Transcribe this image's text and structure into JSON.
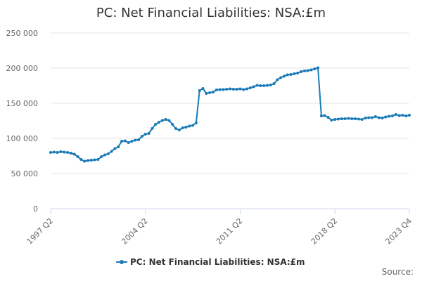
{
  "chart_data": {
    "type": "line",
    "title": "PC: Net Financial Liabilities: NSA:£m",
    "xlabel": "",
    "ylabel": "",
    "ylim": [
      0,
      250000
    ],
    "yticks": [
      0,
      50000,
      100000,
      150000,
      200000,
      250000
    ],
    "ytick_labels": [
      "0",
      "50 000",
      "100 000",
      "150 000",
      "200 000",
      "250 000"
    ],
    "xtick_labels": [
      "1997 Q2",
      "2004 Q2",
      "2011 Q2",
      "2018 Q2",
      "2023 Q4"
    ],
    "grid": true,
    "legend_position": "bottom",
    "color": "#1a7ab8",
    "series": [
      {
        "name": "PC: Net Financial Liabilities: NSA:£m",
        "x": [
          "1997 Q2",
          "1997 Q3",
          "1997 Q4",
          "1998 Q1",
          "1998 Q2",
          "1998 Q3",
          "1998 Q4",
          "1999 Q1",
          "1999 Q2",
          "1999 Q3",
          "1999 Q4",
          "2000 Q1",
          "2000 Q2",
          "2000 Q3",
          "2000 Q4",
          "2001 Q1",
          "2001 Q2",
          "2001 Q3",
          "2001 Q4",
          "2002 Q1",
          "2002 Q2",
          "2002 Q3",
          "2002 Q4",
          "2003 Q1",
          "2003 Q2",
          "2003 Q3",
          "2003 Q4",
          "2004 Q1",
          "2004 Q2",
          "2004 Q3",
          "2004 Q4",
          "2005 Q1",
          "2005 Q2",
          "2005 Q3",
          "2005 Q4",
          "2006 Q1",
          "2006 Q2",
          "2006 Q3",
          "2006 Q4",
          "2007 Q1",
          "2007 Q2",
          "2007 Q3",
          "2007 Q4",
          "2008 Q1",
          "2008 Q2",
          "2008 Q3",
          "2008 Q4",
          "2009 Q1",
          "2009 Q2",
          "2009 Q3",
          "2009 Q4",
          "2010 Q1",
          "2010 Q2",
          "2010 Q3",
          "2010 Q4",
          "2011 Q1",
          "2011 Q2",
          "2011 Q3",
          "2011 Q4",
          "2012 Q1",
          "2012 Q2",
          "2012 Q3",
          "2012 Q4",
          "2013 Q1",
          "2013 Q2",
          "2013 Q3",
          "2013 Q4",
          "2014 Q1",
          "2014 Q2",
          "2014 Q3",
          "2014 Q4",
          "2015 Q1",
          "2015 Q2",
          "2015 Q3",
          "2015 Q4",
          "2016 Q1",
          "2016 Q2",
          "2016 Q3",
          "2016 Q4",
          "2017 Q1",
          "2017 Q2",
          "2017 Q3",
          "2017 Q4",
          "2018 Q1",
          "2018 Q2",
          "2018 Q3",
          "2018 Q4",
          "2019 Q1",
          "2019 Q2",
          "2019 Q3",
          "2019 Q4",
          "2020 Q1",
          "2020 Q2",
          "2020 Q3",
          "2020 Q4",
          "2021 Q1",
          "2021 Q2",
          "2021 Q3",
          "2021 Q4",
          "2022 Q1",
          "2022 Q2",
          "2022 Q3",
          "2022 Q4",
          "2023 Q1",
          "2023 Q2",
          "2023 Q3",
          "2023 Q4"
        ],
        "values": [
          80000,
          80500,
          80000,
          81000,
          80500,
          80000,
          79000,
          77500,
          74000,
          70000,
          67500,
          68500,
          69000,
          69500,
          70000,
          74000,
          76500,
          78000,
          81500,
          85500,
          88000,
          96000,
          96500,
          94000,
          96000,
          97500,
          98000,
          103000,
          106000,
          107000,
          114000,
          120000,
          123000,
          125500,
          127000,
          125500,
          120000,
          114000,
          112000,
          115000,
          116000,
          117500,
          118500,
          122000,
          168000,
          171000,
          164000,
          165000,
          166000,
          169000,
          169500,
          169500,
          170000,
          170500,
          170000,
          170000,
          170500,
          169500,
          170500,
          172000,
          173500,
          175500,
          175000,
          175000,
          175500,
          176000,
          178000,
          183500,
          186500,
          188500,
          190500,
          191000,
          192000,
          193000,
          195000,
          196000,
          196500,
          197500,
          199000,
          200500,
          132000,
          132500,
          130000,
          126000,
          127000,
          127500,
          128000,
          128000,
          128500,
          128000,
          128000,
          127500,
          127000,
          129000,
          129500,
          129500,
          131000,
          129500,
          129000,
          130500,
          131500,
          132000,
          134000,
          132500,
          133000,
          132000,
          133000
        ]
      }
    ]
  },
  "legend": {
    "label": "PC: Net Financial Liabilities: NSA:£m"
  },
  "source": {
    "label": "Source:"
  }
}
